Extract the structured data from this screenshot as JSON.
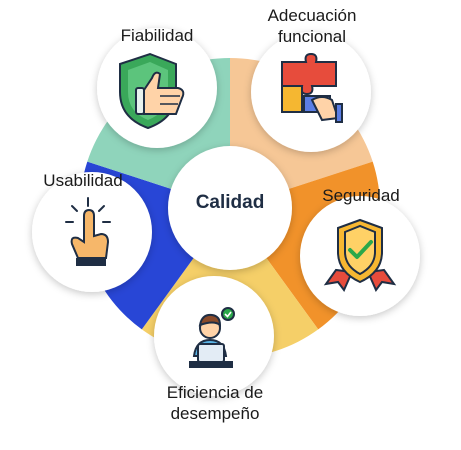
{
  "center": {
    "label": "Calidad"
  },
  "segments": [
    {
      "label": "Fiabilidad",
      "color": "#8fd4bb",
      "icon": "shield-thumbs-up-icon"
    },
    {
      "label": "Adecuación\nfuncional",
      "color": "#f6c796",
      "icon": "puzzle-pieces-icon"
    },
    {
      "label": "Seguridad",
      "color": "#f1922a",
      "icon": "shield-check-icon"
    },
    {
      "label": "Eficiencia de\ndesempeño",
      "color": "#f5cf68",
      "icon": "person-laptop-icon"
    },
    {
      "label": "Usabilidad",
      "color": "#2846d6",
      "icon": "hand-tap-icon"
    }
  ],
  "colors": {
    "circle_fill": "#ffffff",
    "center_text": "#1f2e44",
    "label_text": "#1a1a1a"
  }
}
